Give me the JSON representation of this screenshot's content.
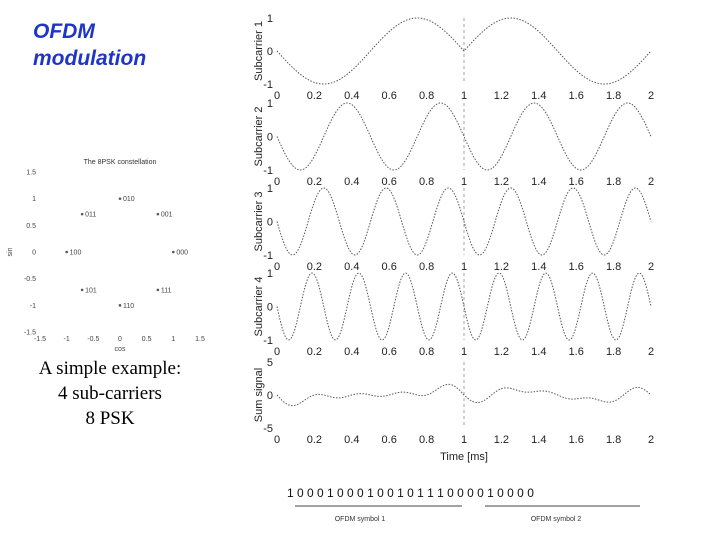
{
  "slide": {
    "title_line1": "OFDM",
    "title_line2": "modulation",
    "example_line1": "A simple example:",
    "example_line2": "4 sub-carriers",
    "example_line3": "8 PSK",
    "title_color": "#1f35c8"
  },
  "chart_data": [
    {
      "type": "scatter",
      "title": "The 8PSK constellation",
      "xlabel": "cos",
      "ylabel": "sin",
      "xlim": [
        -1.5,
        1.5
      ],
      "ylim": [
        -1.5,
        1.5
      ],
      "xticks": [
        "-1.5",
        "-1",
        "-0.5",
        "0",
        "0.5",
        "1",
        "1.5"
      ],
      "yticks": [
        "1.5",
        "1",
        "0.5",
        "0",
        "-0.5",
        "-1",
        "-1.5"
      ],
      "points": [
        {
          "label": "010",
          "x": 0,
          "y": 1
        },
        {
          "label": "011",
          "x": -0.71,
          "y": 0.71
        },
        {
          "label": "001",
          "x": 0.71,
          "y": 0.71
        },
        {
          "label": "100",
          "x": -1,
          "y": 0
        },
        {
          "label": "000",
          "x": 1,
          "y": 0
        },
        {
          "label": "101",
          "x": -0.71,
          "y": -0.71
        },
        {
          "label": "111",
          "x": 0.71,
          "y": -0.71
        },
        {
          "label": "110",
          "x": 0,
          "y": -1
        }
      ]
    },
    {
      "type": "line",
      "xlabel": "Time [ms]",
      "xlim": [
        0,
        2
      ],
      "xticks": [
        "0",
        "0.2",
        "0.4",
        "0.6",
        "0.8",
        "1",
        "1.2",
        "1.4",
        "1.6",
        "1.8",
        "2"
      ],
      "grid": false,
      "symbol_boundary_x": 1,
      "panels": [
        {
          "ylabel": "Subcarrier 1",
          "yticks": [
            "1",
            "0",
            "-1"
          ],
          "ylim": [
            -1,
            1
          ],
          "frequency_khz": 1,
          "phase_deg": [
            90,
            270
          ]
        },
        {
          "ylabel": "Subcarrier 2",
          "yticks": [
            "1",
            "0",
            "-1"
          ],
          "ylim": [
            -1,
            1
          ],
          "frequency_khz": 2,
          "phase_deg": [
            90,
            90
          ]
        },
        {
          "ylabel": "Subcarrier 3",
          "yticks": [
            "1",
            "0",
            "-1"
          ],
          "ylim": [
            -1,
            1
          ],
          "frequency_khz": 3,
          "phase_deg": [
            90,
            90
          ]
        },
        {
          "ylabel": "Subcarrier 4",
          "yticks": [
            "1",
            "0",
            "-1"
          ],
          "ylim": [
            -1,
            1
          ],
          "frequency_khz": 4,
          "phase_deg": [
            90,
            90
          ]
        },
        {
          "ylabel": "Sum signal",
          "yticks": [
            "5",
            "0",
            "-5"
          ],
          "ylim": [
            -5,
            5
          ],
          "frequency_khz": 0,
          "phase_deg": [
            0,
            0
          ]
        }
      ],
      "bits_row": "1 0 0 0   1 0 0   0 1 0   0 1 0   1 1 1   0 0 0   0 1 0   0 0 0",
      "symbol_labels": [
        "OFDM symbol 1",
        "OFDM symbol 2"
      ]
    }
  ]
}
